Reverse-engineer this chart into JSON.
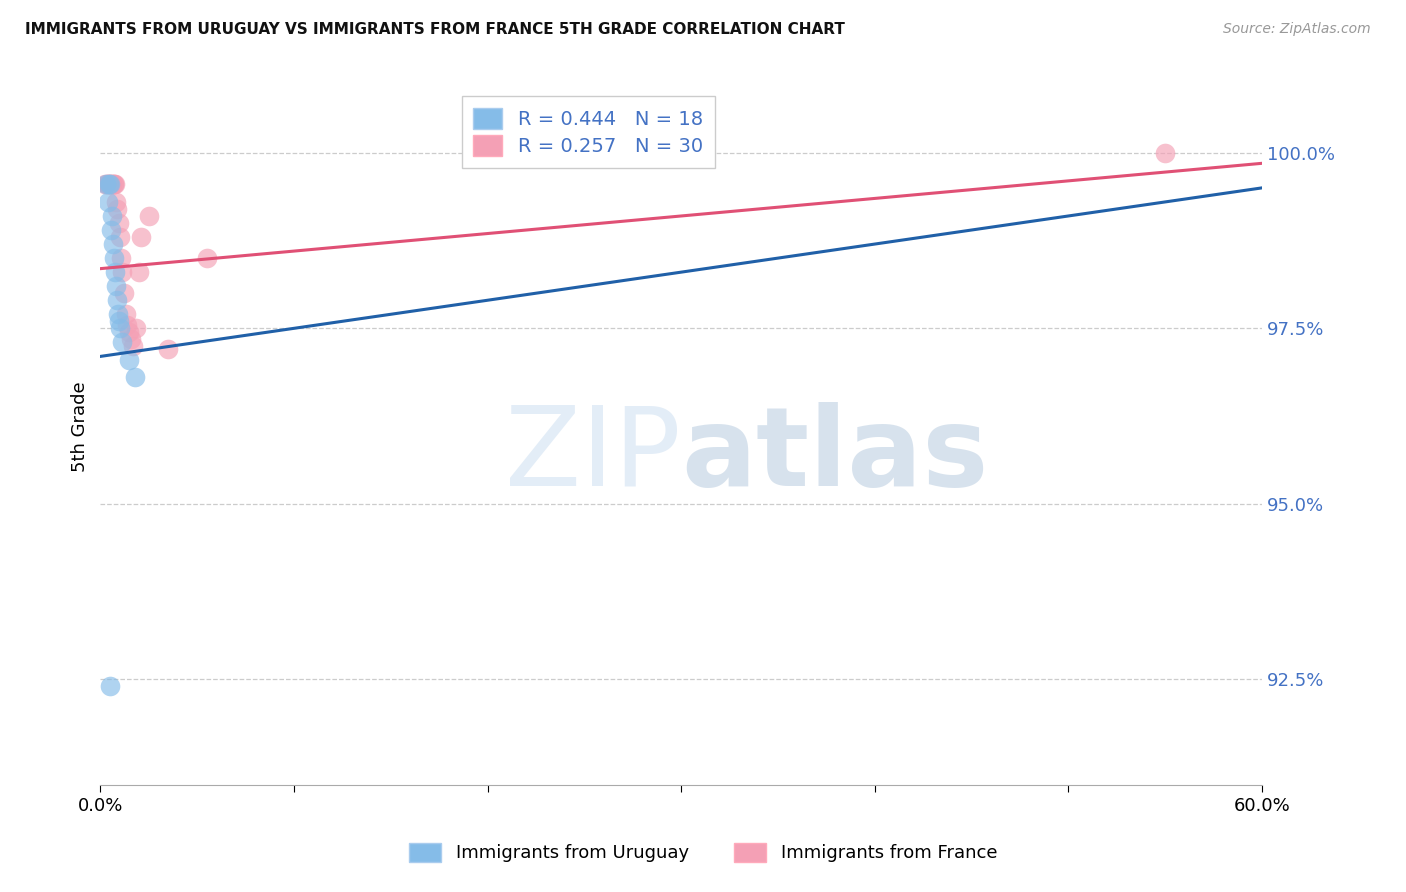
{
  "title": "IMMIGRANTS FROM URUGUAY VS IMMIGRANTS FROM FRANCE 5TH GRADE CORRELATION CHART",
  "source": "Source: ZipAtlas.com",
  "ylabel": "5th Grade",
  "xlim": [
    0.0,
    60.0
  ],
  "ylim": [
    91.0,
    101.2
  ],
  "yticks": [
    92.5,
    95.0,
    97.5,
    100.0
  ],
  "watermark_text1": "ZIP",
  "watermark_text2": "atlas",
  "legend_uruguay": "Immigrants from Uruguay",
  "legend_france": "Immigrants from France",
  "R_uruguay": 0.444,
  "N_uruguay": 18,
  "R_france": 0.257,
  "N_france": 30,
  "color_uruguay": "#85BCE8",
  "color_france": "#F4A0B5",
  "line_color_uruguay": "#2060A8",
  "line_color_france": "#E05075",
  "uruguay_trendline_x0": 0.0,
  "uruguay_trendline_y0": 97.1,
  "uruguay_trendline_x1": 60.0,
  "uruguay_trendline_y1": 99.5,
  "france_trendline_x0": 0.0,
  "france_trendline_y0": 98.35,
  "france_trendline_x1": 60.0,
  "france_trendline_y1": 99.85,
  "uruguay_x": [
    0.3,
    0.45,
    0.5,
    0.6,
    0.65,
    0.7,
    0.75,
    0.8,
    0.85,
    0.9,
    0.95,
    1.0,
    1.1,
    1.5,
    0.4,
    0.55,
    1.8,
    0.5
  ],
  "uruguay_y": [
    99.55,
    99.55,
    99.55,
    99.1,
    98.7,
    98.5,
    98.3,
    98.1,
    97.9,
    97.7,
    97.6,
    97.5,
    97.3,
    97.05,
    99.3,
    98.9,
    96.8,
    92.4
  ],
  "france_x": [
    0.25,
    0.35,
    0.38,
    0.42,
    0.48,
    0.52,
    0.58,
    0.62,
    0.68,
    0.72,
    0.78,
    0.82,
    0.88,
    0.95,
    1.0,
    1.05,
    1.1,
    1.2,
    1.3,
    1.4,
    1.5,
    1.6,
    1.7,
    1.85,
    2.0,
    2.1,
    2.5,
    3.5,
    5.5,
    55.0
  ],
  "france_y": [
    99.55,
    99.55,
    99.55,
    99.55,
    99.55,
    99.55,
    99.55,
    99.55,
    99.55,
    99.55,
    99.55,
    99.3,
    99.2,
    99.0,
    98.8,
    98.5,
    98.3,
    98.0,
    97.7,
    97.55,
    97.45,
    97.35,
    97.25,
    97.5,
    98.3,
    98.8,
    99.1,
    97.2,
    98.5,
    100.0
  ]
}
